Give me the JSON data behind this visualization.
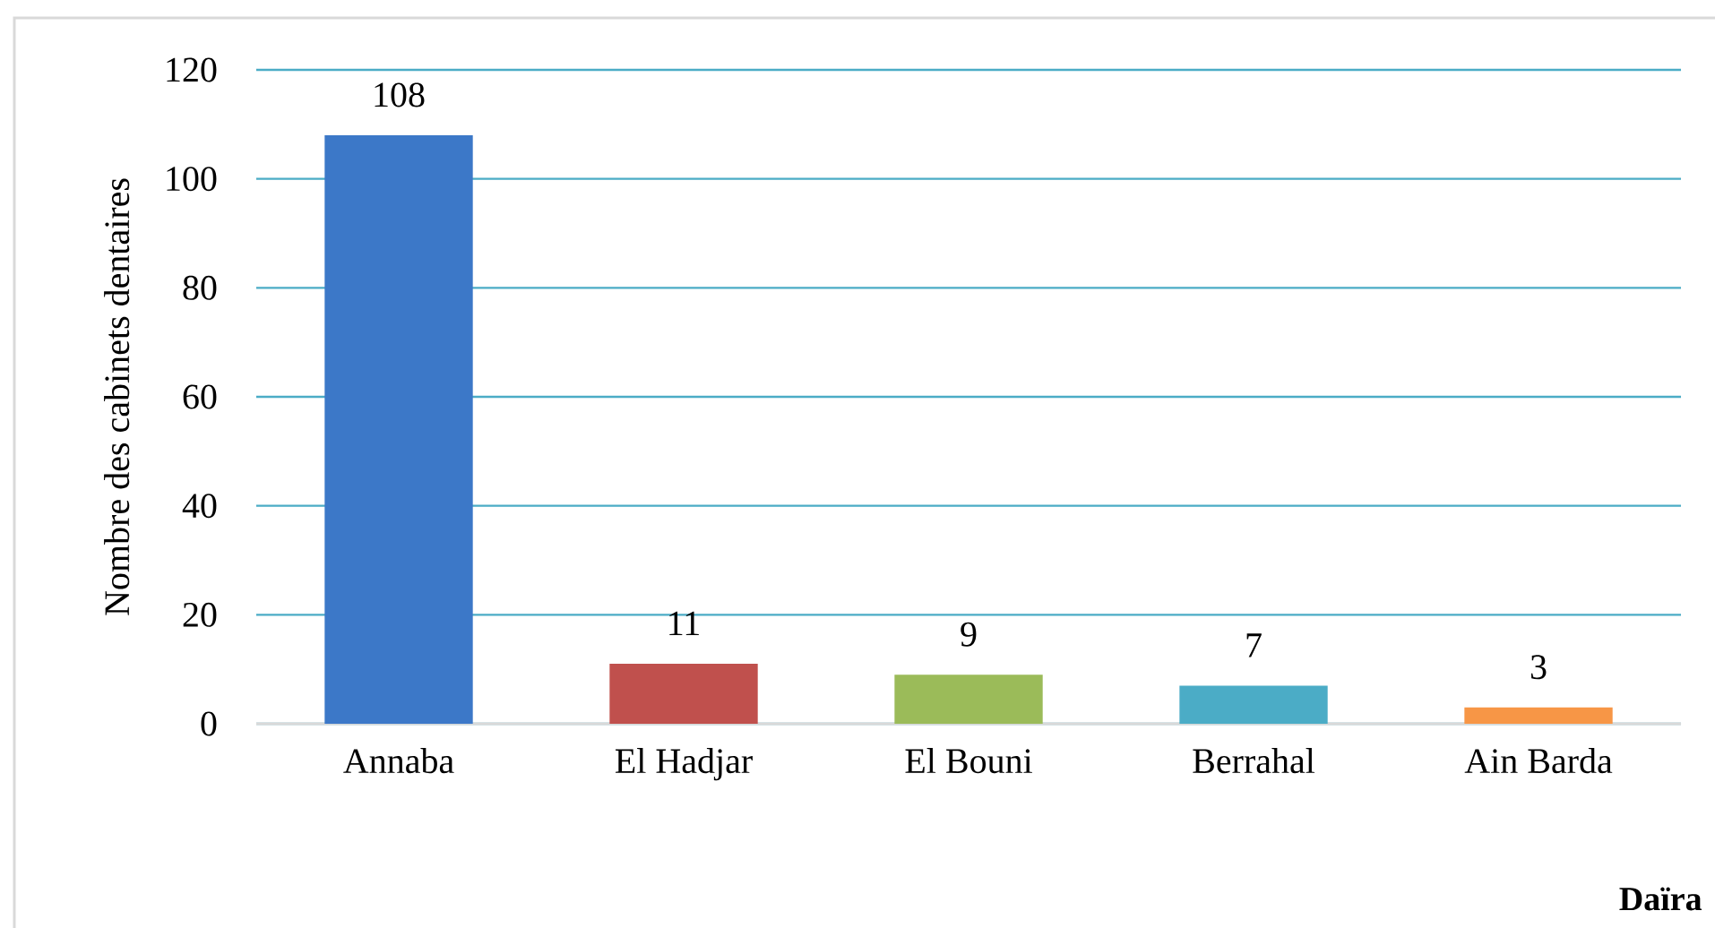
{
  "chart_data": {
    "type": "bar",
    "categories": [
      "Annaba",
      "El Hadjar",
      "El Bouni",
      "Berrahal",
      "Ain Barda"
    ],
    "values": [
      108,
      11,
      9,
      7,
      3
    ],
    "colors": [
      "#3c78c8",
      "#c0504d",
      "#9bbb59",
      "#4bacc6",
      "#f79646"
    ],
    "xlabel": "Daïra",
    "ylabel": "Nombre des cabinets dentaires",
    "ylim": [
      0,
      120
    ],
    "yticks": [
      0,
      20,
      40,
      60,
      80,
      100,
      120
    ],
    "grid": "y",
    "data_labels": true
  }
}
